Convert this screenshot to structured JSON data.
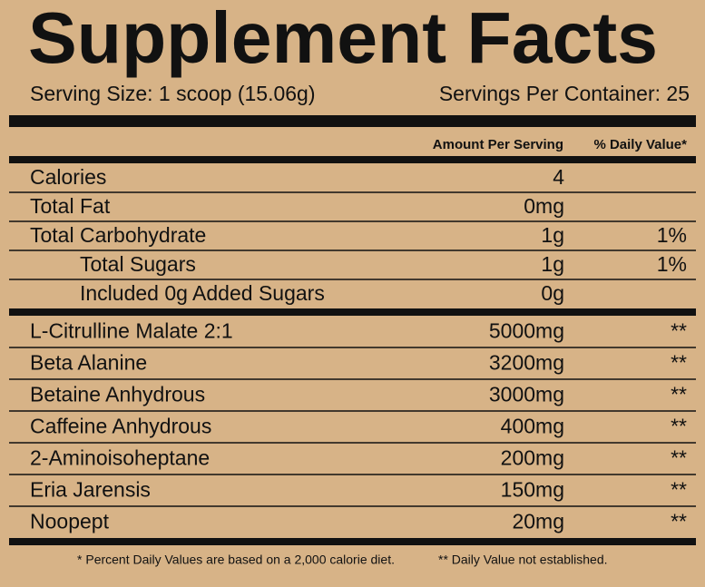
{
  "header": {
    "title": "Supplement Facts",
    "serving_size": "Serving Size: 1 scoop (15.06g)",
    "servings_per_container": "Servings Per Container: 25"
  },
  "table": {
    "columns": {
      "amount": "Amount Per Serving",
      "daily_value": "% Daily Value*"
    },
    "nutrition": [
      {
        "name": "Calories",
        "amount": "4"
      },
      {
        "name": "Total Fat",
        "amount": "0mg"
      },
      {
        "name": "Total Carbohydrate",
        "amount": "1g",
        "daily_value": "1%",
        "subrows": [
          {
            "name": "Total Sugars",
            "amount": "1g",
            "daily_value": "1%"
          },
          {
            "name": "Included 0g Added Sugars",
            "amount": "0g"
          }
        ]
      }
    ],
    "ingredients": [
      {
        "name": "L-Citrulline Malate 2:1",
        "amount": "5000mg",
        "daily_value": "**"
      },
      {
        "name": "Beta Alanine",
        "amount": "3200mg",
        "daily_value": "**"
      },
      {
        "name": "Betaine Anhydrous",
        "amount": "3000mg",
        "daily_value": "**"
      },
      {
        "name": "Caffeine Anhydrous",
        "amount": "400mg",
        "daily_value": "**"
      },
      {
        "name": "2-Aminoisoheptane",
        "amount": "200mg",
        "daily_value": "**"
      },
      {
        "name": "Eria Jarensis",
        "amount": "150mg",
        "daily_value": "**"
      },
      {
        "name": "Noopept",
        "amount": "20mg",
        "daily_value": "**"
      }
    ]
  },
  "footer": {
    "left": "* Percent Daily Values are based on a 2,000 calorie diet.",
    "right": "** Daily Value not established."
  }
}
